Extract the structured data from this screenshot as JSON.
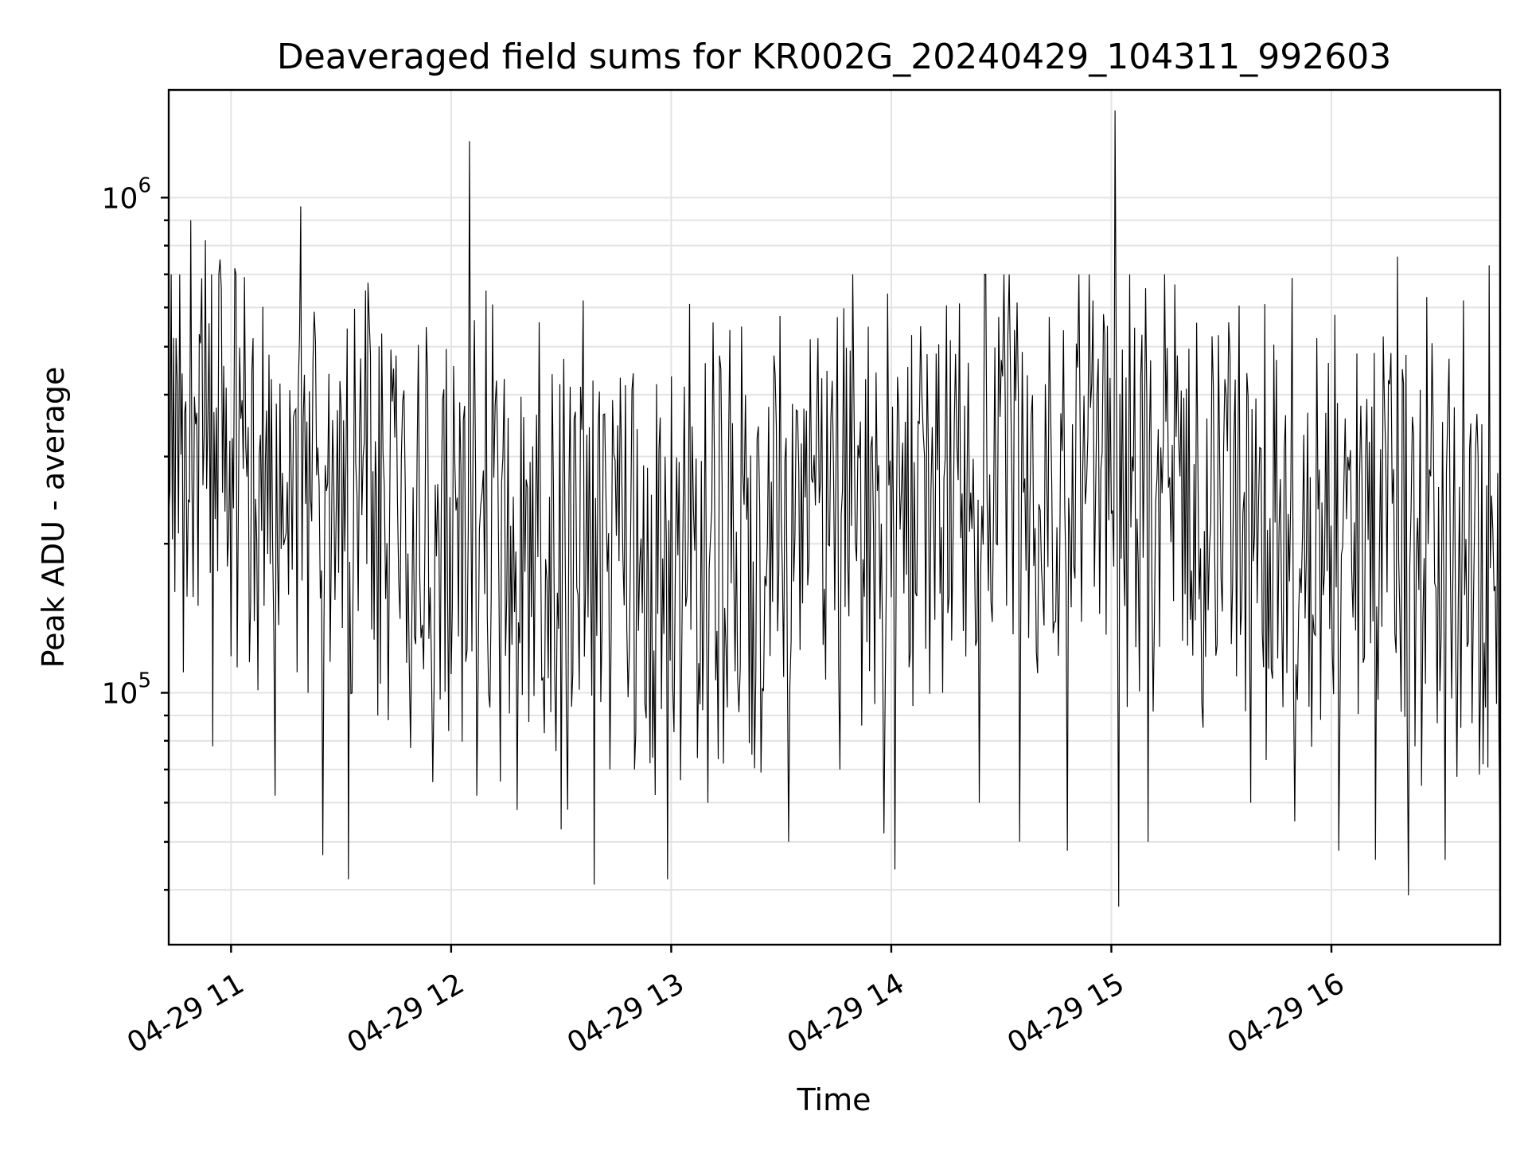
{
  "chart_data": {
    "type": "line",
    "title": "Deaveraged field sums for KR002G_20240429_104311_992603",
    "xlabel": "Time",
    "ylabel": "Peak ADU - average",
    "yscale": "log",
    "ylim": [
      31000,
      1650000
    ],
    "xlim": [
      "2024-04-29 10:43:00",
      "2024-04-29 16:46:00"
    ],
    "grid": true,
    "x_ticks": [
      {
        "time": "2024-04-29 11:00",
        "label": "04-29 11"
      },
      {
        "time": "2024-04-29 12:00",
        "label": "04-29 12"
      },
      {
        "time": "2024-04-29 13:00",
        "label": "04-29 13"
      },
      {
        "time": "2024-04-29 14:00",
        "label": "04-29 14"
      },
      {
        "time": "2024-04-29 15:00",
        "label": "04-29 15"
      },
      {
        "time": "2024-04-29 16:00",
        "label": "04-29 16"
      }
    ],
    "y_ticks": [
      {
        "value": 100000,
        "base": "10",
        "exp": "5"
      },
      {
        "value": 1000000,
        "base": "10",
        "exp": "6"
      }
    ],
    "series": [
      {
        "color": "#000000",
        "points": [
          [
            "2024-04-29 10:43",
            230000
          ],
          [
            "2024-04-29 10:45",
            520000
          ],
          [
            "2024-04-29 10:47",
            110000
          ],
          [
            "2024-04-29 10:49",
            900000
          ],
          [
            "2024-04-29 10:51",
            150000
          ],
          [
            "2024-04-29 10:53",
            820000
          ],
          [
            "2024-04-29 10:55",
            78000
          ],
          [
            "2024-04-29 10:57",
            750000
          ],
          [
            "2024-04-29 10:59",
            180000
          ],
          [
            "2024-04-29 11:01",
            720000
          ],
          [
            "2024-04-29 11:03",
            390000
          ],
          [
            "2024-04-29 11:06",
            520000
          ],
          [
            "2024-04-29 11:09",
            150000
          ],
          [
            "2024-04-29 11:12",
            62000
          ],
          [
            "2024-04-29 11:15",
            210000
          ],
          [
            "2024-04-29 11:18",
            110000
          ],
          [
            "2024-04-29 11:19",
            960000
          ],
          [
            "2024-04-29 11:21",
            100000
          ],
          [
            "2024-04-29 11:25",
            47000
          ],
          [
            "2024-04-29 11:28",
            270000
          ],
          [
            "2024-04-29 11:32",
            42000
          ],
          [
            "2024-04-29 11:36",
            300000
          ],
          [
            "2024-04-29 11:40",
            90000
          ],
          [
            "2024-04-29 11:45",
            480000
          ],
          [
            "2024-04-29 11:50",
            130000
          ],
          [
            "2024-04-29 11:55",
            66000
          ],
          [
            "2024-04-29 11:58",
            410000
          ],
          [
            "2024-04-29 12:02",
            130000
          ],
          [
            "2024-04-29 12:05",
            1300000
          ],
          [
            "2024-04-29 12:07",
            62000
          ],
          [
            "2024-04-29 12:12",
            380000
          ],
          [
            "2024-04-29 12:18",
            58000
          ],
          [
            "2024-04-29 12:24",
            560000
          ],
          [
            "2024-04-29 12:30",
            53000
          ],
          [
            "2024-04-29 12:36",
            620000
          ],
          [
            "2024-04-29 12:39",
            41000
          ],
          [
            "2024-04-29 12:44",
            390000
          ],
          [
            "2024-04-29 12:50",
            70000
          ],
          [
            "2024-04-29 12:56",
            420000
          ],
          [
            "2024-04-29 12:59",
            42000
          ],
          [
            "2024-04-29 13:05",
            610000
          ],
          [
            "2024-04-29 13:10",
            60000
          ],
          [
            "2024-04-29 13:16",
            540000
          ],
          [
            "2024-04-29 13:22",
            75000
          ],
          [
            "2024-04-29 13:28",
            480000
          ],
          [
            "2024-04-29 13:32",
            50000
          ],
          [
            "2024-04-29 13:40",
            520000
          ],
          [
            "2024-04-29 13:46",
            70000
          ],
          [
            "2024-04-29 13:53",
            430000
          ],
          [
            "2024-04-29 13:58",
            52000
          ],
          [
            "2024-04-29 13:59",
            640000
          ],
          [
            "2024-04-29 14:01",
            44000
          ],
          [
            "2024-04-29 14:08",
            550000
          ],
          [
            "2024-04-29 14:14",
            100000
          ],
          [
            "2024-04-29 14:20",
            380000
          ],
          [
            "2024-04-29 14:24",
            60000
          ],
          [
            "2024-04-29 14:30",
            470000
          ],
          [
            "2024-04-29 14:35",
            50000
          ],
          [
            "2024-04-29 14:42",
            420000
          ],
          [
            "2024-04-29 14:48",
            48000
          ],
          [
            "2024-04-29 14:55",
            620000
          ],
          [
            "2024-04-29 15:00",
            230000
          ],
          [
            "2024-04-29 15:01",
            1500000
          ],
          [
            "2024-04-29 15:02",
            37000
          ],
          [
            "2024-04-29 15:06",
            280000
          ],
          [
            "2024-04-29 15:10",
            50000
          ],
          [
            "2024-04-29 15:18",
            480000
          ],
          [
            "2024-04-29 15:25",
            85000
          ],
          [
            "2024-04-29 15:32",
            560000
          ],
          [
            "2024-04-29 15:38",
            60000
          ],
          [
            "2024-04-29 15:45",
            470000
          ],
          [
            "2024-04-29 15:50",
            55000
          ],
          [
            "2024-04-29 15:56",
            520000
          ],
          [
            "2024-04-29 16:02",
            48000
          ],
          [
            "2024-04-29 16:08",
            380000
          ],
          [
            "2024-04-29 16:12",
            46000
          ],
          [
            "2024-04-29 16:18",
            760000
          ],
          [
            "2024-04-29 16:21",
            39000
          ],
          [
            "2024-04-29 16:26",
            630000
          ],
          [
            "2024-04-29 16:31",
            46000
          ],
          [
            "2024-04-29 16:36",
            620000
          ],
          [
            "2024-04-29 16:40",
            300000
          ],
          [
            "2024-04-29 16:43",
            730000
          ],
          [
            "2024-04-29 16:45",
            95000
          ],
          [
            "2024-04-29 16:46",
            47000
          ]
        ]
      }
    ]
  }
}
